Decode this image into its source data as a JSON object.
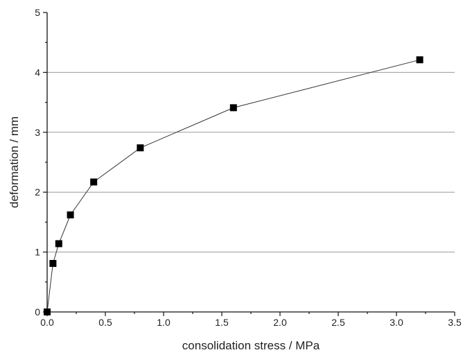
{
  "chart_data": {
    "type": "scatter",
    "title": "",
    "xlabel": "consolidation stress / MPa",
    "ylabel": "deformation / mm",
    "xlim": [
      0,
      3.5
    ],
    "ylim": [
      0,
      5
    ],
    "x_ticks": [
      "0.0",
      "0.5",
      "1.0",
      "1.5",
      "2.0",
      "2.5",
      "3.0",
      "3.5"
    ],
    "y_ticks": [
      "0",
      "1",
      "2",
      "3",
      "4",
      "5"
    ],
    "grid": "horizontal",
    "marker": "square",
    "line": true,
    "series": [
      {
        "x": [
          0,
          0.05,
          0.1,
          0.2,
          0.4,
          0.8,
          1.6,
          3.2
        ],
        "y": [
          0,
          0.81,
          1.14,
          1.62,
          2.17,
          2.74,
          3.41,
          4.21
        ]
      }
    ]
  }
}
